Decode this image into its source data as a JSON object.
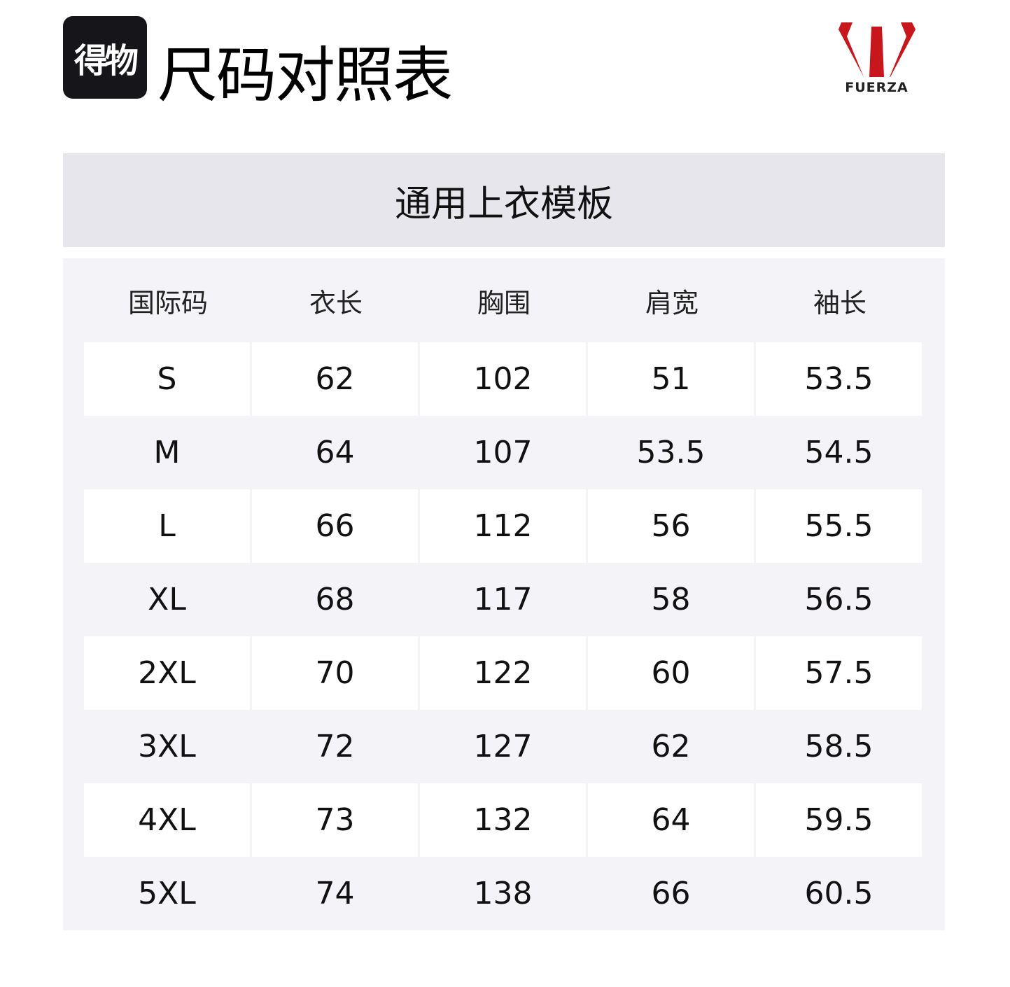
{
  "header": {
    "badge_text": "得物",
    "title": "尺码对照表",
    "brand_logo_text": "FUERZA",
    "brand_color": "#c8161d"
  },
  "template_title": "通用上衣模板",
  "table": {
    "columns": [
      "国际码",
      "衣长",
      "胸围",
      "肩宽",
      "袖长"
    ],
    "rows": [
      [
        "S",
        "62",
        "102",
        "51",
        "53.5"
      ],
      [
        "M",
        "64",
        "107",
        "53.5",
        "54.5"
      ],
      [
        "L",
        "66",
        "112",
        "56",
        "55.5"
      ],
      [
        "XL",
        "68",
        "117",
        "58",
        "56.5"
      ],
      [
        "2XL",
        "70",
        "122",
        "60",
        "57.5"
      ],
      [
        "3XL",
        "72",
        "127",
        "62",
        "58.5"
      ],
      [
        "4XL",
        "73",
        "132",
        "64",
        "59.5"
      ],
      [
        "5XL",
        "74",
        "138",
        "66",
        "60.5"
      ]
    ]
  }
}
